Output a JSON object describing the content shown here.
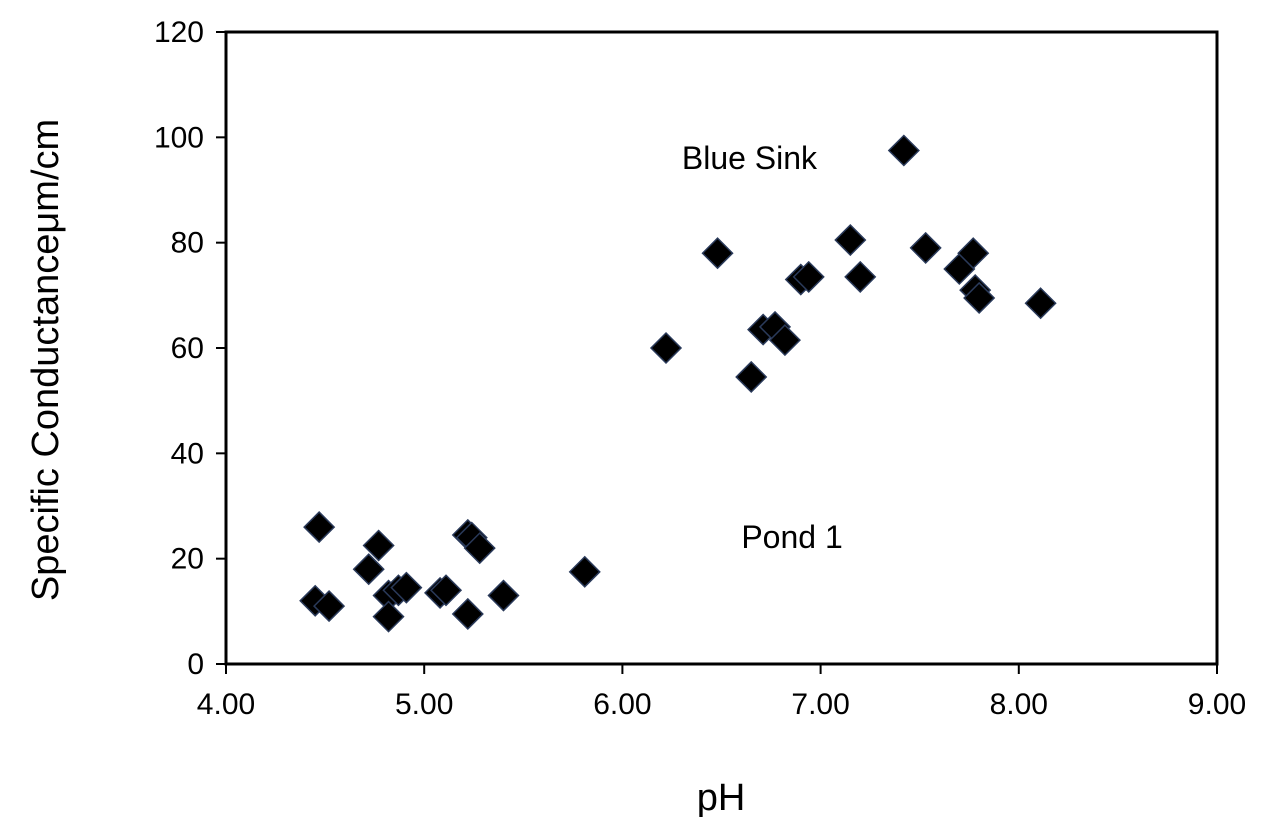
{
  "chart_data": {
    "type": "scatter",
    "xlabel": "pH",
    "ylabel": "Specific Conductanceμm/cm",
    "xlim": [
      4.0,
      9.0
    ],
    "ylim": [
      0,
      120
    ],
    "xticks": [
      "4.00",
      "5.00",
      "6.00",
      "7.00",
      "8.00",
      "9.00"
    ],
    "yticks": [
      "0",
      "20",
      "40",
      "60",
      "80",
      "100",
      "120"
    ],
    "xtick_values": [
      4,
      5,
      6,
      7,
      8,
      9
    ],
    "ytick_values": [
      0,
      20,
      40,
      60,
      80,
      100,
      120
    ],
    "grid": false,
    "marker": "diamond",
    "marker_color": "#000000",
    "annotations": [
      {
        "text": "Blue Sink",
        "x": 6.3,
        "y": 94
      },
      {
        "text": "Pond 1",
        "x": 6.6,
        "y": 22
      }
    ],
    "series": [
      {
        "points": [
          [
            4.47,
            26
          ],
          [
            4.45,
            12
          ],
          [
            4.52,
            11
          ],
          [
            4.72,
            18
          ],
          [
            4.77,
            22.5
          ],
          [
            4.82,
            13
          ],
          [
            4.82,
            9
          ],
          [
            4.87,
            14
          ],
          [
            4.91,
            14.5
          ],
          [
            5.08,
            13.5
          ],
          [
            5.11,
            14
          ],
          [
            5.22,
            24.5
          ],
          [
            5.24,
            24
          ],
          [
            5.28,
            22
          ],
          [
            5.22,
            9.5
          ],
          [
            5.4,
            13
          ],
          [
            5.81,
            17.5
          ],
          [
            6.22,
            60
          ],
          [
            6.48,
            78
          ],
          [
            6.65,
            54.5
          ],
          [
            6.71,
            63.5
          ],
          [
            6.77,
            64
          ],
          [
            6.82,
            61.5
          ],
          [
            6.9,
            73
          ],
          [
            6.94,
            73.5
          ],
          [
            7.15,
            80.5
          ],
          [
            7.2,
            73.5
          ],
          [
            7.42,
            97.5
          ],
          [
            7.53,
            79
          ],
          [
            7.7,
            75
          ],
          [
            7.77,
            78
          ],
          [
            7.78,
            71
          ],
          [
            7.8,
            69.5
          ],
          [
            8.11,
            68.5
          ]
        ]
      }
    ]
  }
}
